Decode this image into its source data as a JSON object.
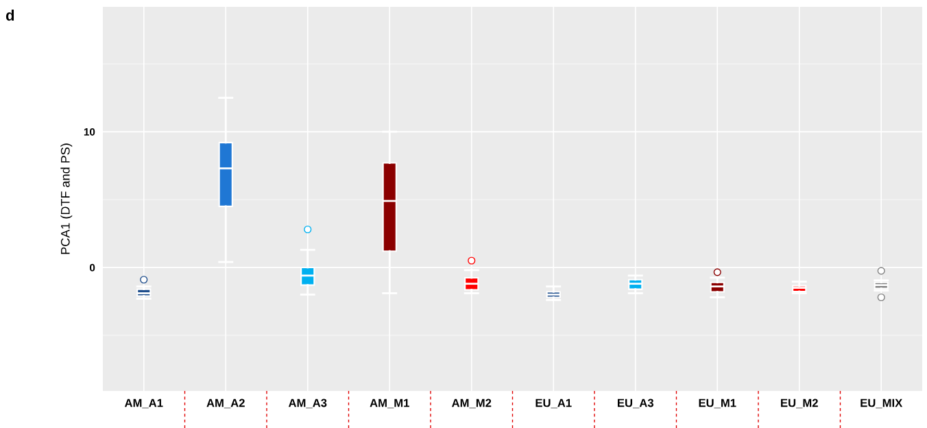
{
  "chart_data": {
    "type": "box",
    "ylabel": "PCA1 (DTF and PS)",
    "annotations": [
      "d"
    ],
    "categories": [
      "AM_A1",
      "AM_A2",
      "AM_A3",
      "AM_M1",
      "AM_M2",
      "EU_A1",
      "EU_A3",
      "EU_M1",
      "EU_M2",
      "EU_MIX"
    ],
    "colors": [
      "#1f4e8c",
      "#1f77d4",
      "#00b0f0",
      "#8b0000",
      "#ff0000",
      "#1f4e8c",
      "#00b0f0",
      "#8b0000",
      "#ff0000",
      "#808080"
    ],
    "boxes": [
      {
        "low": -2.3,
        "q1": -2.1,
        "median": -1.9,
        "q3": -1.6,
        "high": -1.4,
        "outliers": [
          -0.9
        ]
      },
      {
        "low": 0.4,
        "q1": 4.5,
        "median": 7.3,
        "q3": 9.2,
        "high": 12.5
      },
      {
        "low": -2.0,
        "q1": -1.3,
        "median": -0.6,
        "q3": 0.0,
        "high": 1.3,
        "outliers": [
          2.8
        ]
      },
      {
        "low": -1.9,
        "q1": 1.2,
        "median": 4.9,
        "q3": 7.7,
        "high": 10.0
      },
      {
        "low": -1.9,
        "q1": -1.65,
        "median": -1.2,
        "q3": -0.76,
        "high": -0.2,
        "outliers": [
          0.5
        ]
      },
      {
        "low": -2.4,
        "q1": -2.2,
        "median": -2.0,
        "q3": -1.8,
        "high": -1.4
      },
      {
        "low": -1.9,
        "q1": -1.6,
        "median": -1.2,
        "q3": -0.9,
        "high": -0.6
      },
      {
        "low": -2.2,
        "q1": -1.8,
        "median": -1.4,
        "q3": -1.1,
        "high": -0.75,
        "outliers": [
          -0.35
        ]
      },
      {
        "low": -1.9,
        "q1": -1.77,
        "median": -1.5,
        "q3": -1.35,
        "high": -1.05
      },
      {
        "low": -1.7,
        "q1": -1.55,
        "median": -1.3,
        "q3": -1.1,
        "high": -0.95,
        "outliers": [
          -0.25,
          -2.2
        ]
      }
    ],
    "ylim": [
      -9.1,
      19.2
    ],
    "yticks": [
      {
        "value": -5,
        "label": null
      },
      0,
      {
        "value": 5,
        "label": null
      },
      10,
      {
        "value": 15,
        "label": null
      }
    ],
    "grid": true
  }
}
